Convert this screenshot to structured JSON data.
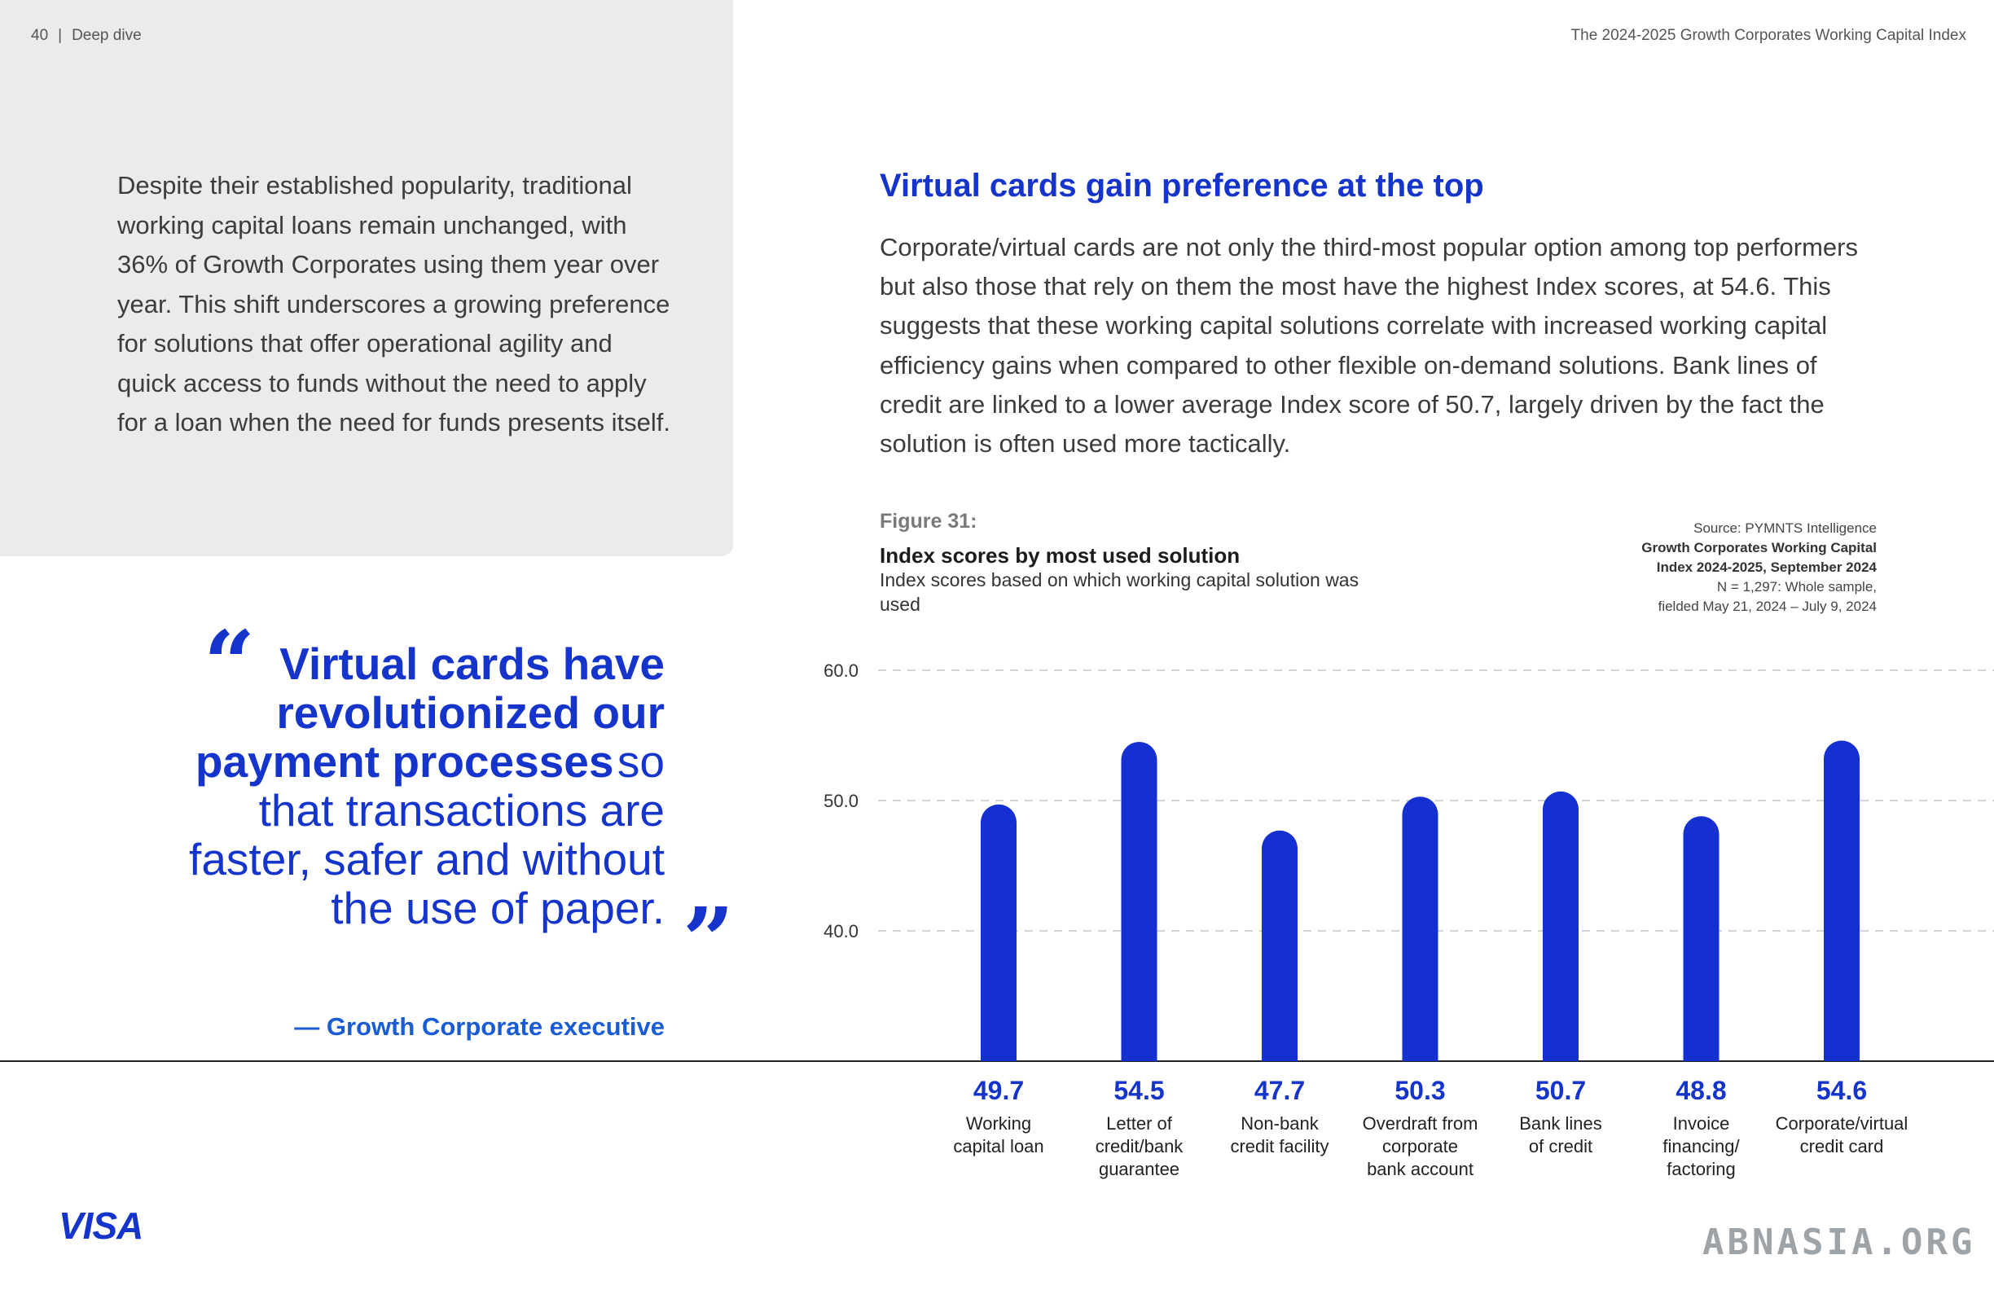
{
  "header": {
    "page_number": "40",
    "section": "Deep dive",
    "report_title": "The 2024-2025 Growth Corporates Working Capital Index"
  },
  "intro_text": "Despite their established popularity, traditional working capital loans remain unchanged, with 36% of Growth Corporates using them year over year. This shift underscores a growing preference for solutions that offer operational agility and quick access to funds without the need to apply for a loan when the need for funds presents itself.",
  "quote": {
    "bold_part": "Virtual cards have revolutionized our payment processes",
    "light_part": "so that transactions are faster, safer and without the use of paper.",
    "attribution": "— Growth Corporate executive"
  },
  "section": {
    "title": "Virtual cards gain preference at the top",
    "body": "Corporate/virtual cards are not only the third-most popular option among top performers but also those that rely on them the most have the highest Index scores, at 54.6. This suggests that these working capital solutions correlate with increased working capital efficiency gains when compared to other flexible on-demand solutions. Bank lines of credit are linked to a lower average Index score of 50.7, largely driven by the fact the solution is often used more tactically."
  },
  "figure": {
    "label": "Figure 31:",
    "title": "Index scores by most used solution",
    "subtitle": "Index scores based on which working capital solution was used",
    "source_line1": "Source: PYMNTS Intelligence",
    "source_line2": "Growth Corporates Working Capital",
    "source_line3": "Index 2024-2025, September 2024",
    "source_line4": "N = 1,297: Whole sample,",
    "source_line5": "fielded May 21, 2024 – July 9, 2024"
  },
  "chart_data": {
    "type": "bar",
    "title": "Index scores by most used solution",
    "categories": [
      [
        "Working",
        "capital loan"
      ],
      [
        "Letter of",
        "credit/bank",
        "guarantee"
      ],
      [
        "Non-bank",
        "credit facility"
      ],
      [
        "Overdraft from",
        "corporate",
        "bank account"
      ],
      [
        "Bank lines",
        "of credit"
      ],
      [
        "Invoice",
        "financing/",
        "factoring"
      ],
      [
        "Corporate/virtual",
        "credit card"
      ]
    ],
    "values": [
      49.7,
      54.5,
      47.7,
      50.3,
      50.7,
      48.8,
      54.6
    ],
    "value_labels": [
      "49.7",
      "54.5",
      "47.7",
      "50.3",
      "50.7",
      "48.8",
      "54.6"
    ],
    "y_ticks": [
      "60.0",
      "50.0",
      "40.0"
    ],
    "y_tick_values": [
      60,
      50,
      40
    ],
    "ylim": [
      30,
      60
    ],
    "grid": true,
    "bar_color": "#1530d0"
  },
  "brand": {
    "logo_text": "VISA",
    "watermark": "ABNASIA.ORG",
    "accent": "#1434cb"
  }
}
